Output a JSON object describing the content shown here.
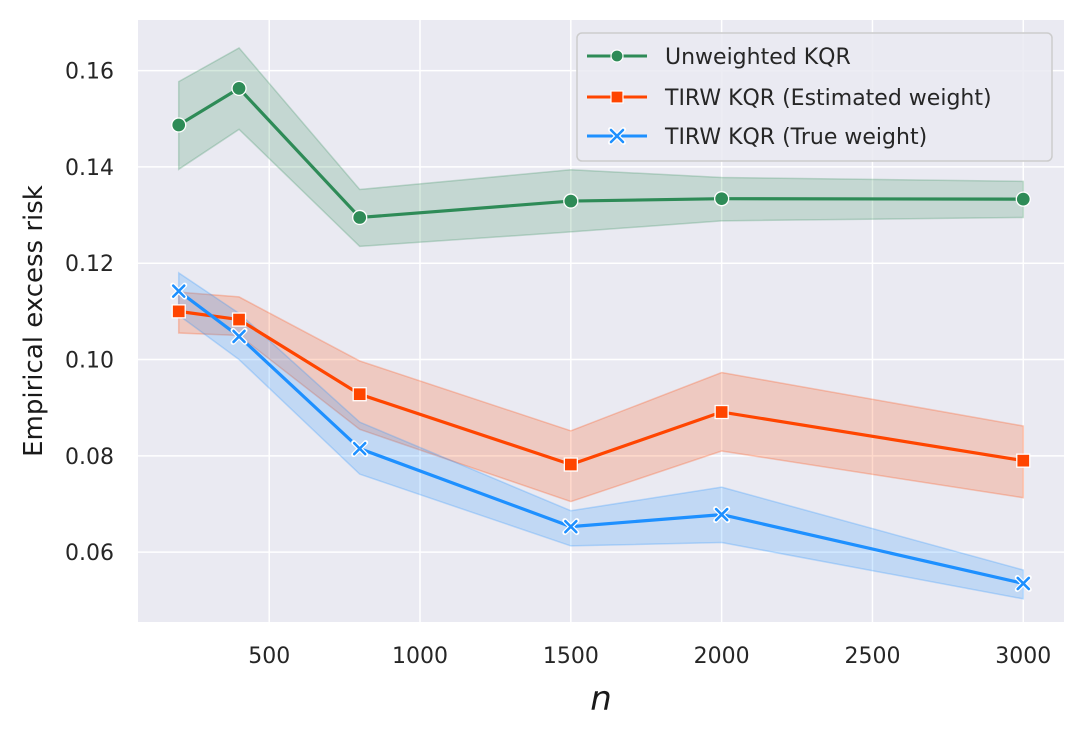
{
  "chart_data": {
    "type": "line",
    "title": "",
    "xlabel": "n",
    "ylabel": "Empirical excess risk",
    "x": [
      200,
      400,
      800,
      1500,
      2000,
      3000
    ],
    "xlim": [
      65,
      3135
    ],
    "ylim": [
      0.0455,
      0.1705
    ],
    "xticks": [
      500,
      1000,
      1500,
      2000,
      2500,
      3000
    ],
    "xtick_labels": [
      "500",
      "1000",
      "1500",
      "2000",
      "2500",
      "3000"
    ],
    "yticks": [
      0.06,
      0.08,
      0.1,
      0.12,
      0.14,
      0.16
    ],
    "ytick_labels": [
      "0.06",
      "0.08",
      "0.10",
      "0.12",
      "0.14",
      "0.16"
    ],
    "grid": true,
    "legend_position": "top-right",
    "series": [
      {
        "name": "Unweighted KQR",
        "color": "#2e8b57",
        "marker": "circle",
        "values": [
          0.1487,
          0.1563,
          0.1295,
          0.1329,
          0.1334,
          0.1333
        ],
        "lower": [
          0.1395,
          0.1478,
          0.1235,
          0.1265,
          0.1288,
          0.1295
        ],
        "upper": [
          0.1577,
          0.1647,
          0.1353,
          0.1394,
          0.1378,
          0.137
        ]
      },
      {
        "name": "TIRW KQR (Estimated weight)",
        "color": "#ff4500",
        "marker": "square",
        "values": [
          0.11,
          0.1083,
          0.0928,
          0.0782,
          0.0891,
          0.079
        ],
        "lower": [
          0.1055,
          0.105,
          0.0855,
          0.0705,
          0.081,
          0.0713
        ],
        "upper": [
          0.114,
          0.113,
          0.0997,
          0.0852,
          0.0973,
          0.0862
        ]
      },
      {
        "name": "TIRW KQR (True weight)",
        "color": "#1e90ff",
        "marker": "x",
        "values": [
          0.1142,
          0.1048,
          0.0815,
          0.0653,
          0.0678,
          0.0535
        ],
        "lower": [
          0.1092,
          0.1,
          0.0762,
          0.0613,
          0.062,
          0.0503
        ],
        "upper": [
          0.118,
          0.1096,
          0.087,
          0.0686,
          0.0735,
          0.0563
        ]
      }
    ]
  }
}
